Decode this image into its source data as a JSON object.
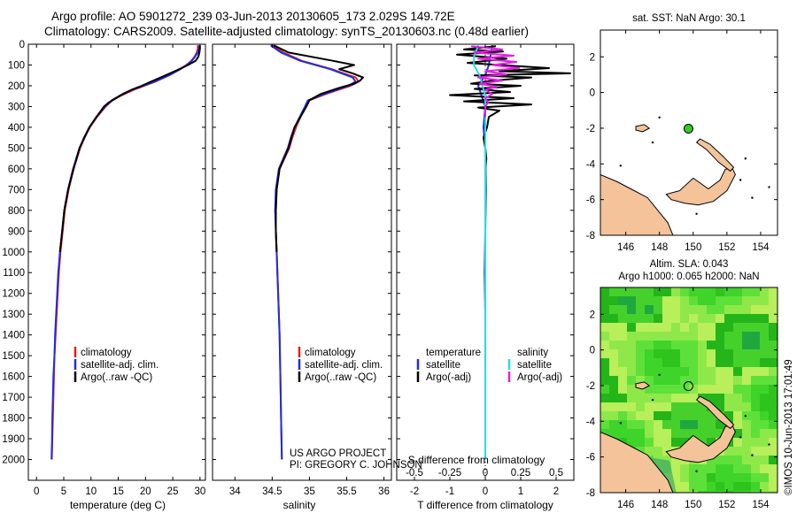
{
  "header": {
    "line1": "Argo profile: AO 5901272_239 03-Jun-2013 20130605_173 2.029S 149.72E",
    "line2": "Climatology: CARS2009. Satellite-adjusted climatology: synTS_20130603.nc (0.48d earlier)"
  },
  "colors": {
    "climatology": "#e0201b",
    "satellite": "#1f2de0",
    "argo": "#000000",
    "sal_sat": "#29d9e8",
    "sal_argo": "#e020e0",
    "land": "#f4c39a",
    "sla_green": "#33cc22",
    "float_marker": "#33cc22"
  },
  "chart_data": [
    {
      "type": "line",
      "id": "temperature",
      "xlabel": "temperature (deg C)",
      "ylabel": "",
      "xlim": [
        -1.5,
        31
      ],
      "ylim": [
        2100,
        0
      ],
      "xticks": [
        0,
        5,
        10,
        15,
        20,
        25,
        30
      ],
      "yticks": [
        0,
        100,
        200,
        300,
        400,
        500,
        600,
        700,
        800,
        900,
        1000,
        1100,
        1200,
        1300,
        1400,
        1500,
        1600,
        1700,
        1800,
        1900,
        2000
      ],
      "legend": [
        "climatology",
        "satellite-adj. clim.",
        "Argo(..raw -QC)"
      ],
      "series": [
        {
          "name": "climatology",
          "depth": [
            5,
            20,
            40,
            60,
            80,
            100,
            120,
            150,
            180,
            200,
            220,
            250,
            270,
            300,
            350,
            400,
            450,
            500,
            600,
            700,
            800,
            900,
            1000,
            1100,
            1200,
            1300,
            1400,
            1500,
            1600,
            1700,
            1800,
            1900,
            2000
          ],
          "values": [
            29.6,
            29.6,
            29.4,
            29.0,
            28.4,
            27.5,
            26.3,
            24.3,
            21.8,
            19.8,
            17.8,
            15.3,
            13.9,
            12.7,
            11.1,
            9.8,
            8.8,
            8.0,
            6.8,
            5.9,
            5.2,
            4.8,
            4.4,
            4.1,
            3.9,
            3.7,
            3.5,
            3.3,
            3.2,
            3.1,
            3.0,
            2.9,
            2.8
          ]
        },
        {
          "name": "satellite-adj. clim.",
          "depth": [
            5,
            20,
            40,
            60,
            80,
            100,
            120,
            150,
            180,
            200,
            220,
            250,
            270,
            300,
            350,
            400,
            450,
            500,
            600,
            700,
            800,
            900,
            1000,
            1100,
            1200,
            1300,
            1400,
            1500,
            1600,
            1700,
            1800,
            1900,
            2000
          ],
          "values": [
            29.8,
            29.8,
            29.6,
            29.1,
            28.5,
            27.6,
            26.4,
            24.3,
            21.6,
            19.6,
            17.5,
            15.1,
            13.8,
            12.6,
            11.0,
            9.7,
            8.7,
            7.9,
            6.7,
            5.8,
            5.1,
            4.7,
            4.3,
            4.0,
            3.8,
            3.6,
            3.4,
            3.3,
            3.1,
            3.0,
            2.9,
            2.85,
            2.75
          ]
        },
        {
          "name": "Argo(..raw -QC)",
          "depth": [
            5,
            20,
            40,
            60,
            80,
            100,
            120,
            140,
            160,
            180,
            200,
            220,
            240,
            260,
            280,
            300,
            350,
            400,
            500,
            600,
            700,
            800,
            900,
            1000
          ],
          "values": [
            30.0,
            30.0,
            29.9,
            29.7,
            29.2,
            27.8,
            26.2,
            24.5,
            22.8,
            21.0,
            19.3,
            17.4,
            15.8,
            14.6,
            13.3,
            12.4,
            11.0,
            9.7,
            7.9,
            6.8,
            5.8,
            5.1,
            4.7,
            4.3
          ]
        }
      ]
    },
    {
      "type": "line",
      "id": "salinity",
      "xlabel": "salinity",
      "xlim": [
        33.7,
        36.1
      ],
      "ylim": [
        2100,
        0
      ],
      "xticks": [
        34,
        34.5,
        35,
        35.5,
        36
      ],
      "legend": [
        "climatology",
        "satellite-adj. clim.",
        "Argo(..raw -QC)"
      ],
      "series": [
        {
          "name": "climatology",
          "depth": [
            5,
            40,
            80,
            120,
            160,
            180,
            200,
            240,
            270,
            300,
            350,
            400,
            450,
            500,
            600,
            700,
            800,
            900,
            1000,
            1200,
            1400,
            1600,
            1800,
            2000
          ],
          "values": [
            34.5,
            34.65,
            34.9,
            35.3,
            35.62,
            35.66,
            35.55,
            35.22,
            35.0,
            34.95,
            34.88,
            34.82,
            34.77,
            34.73,
            34.6,
            34.56,
            34.55,
            34.55,
            34.56,
            34.58,
            34.6,
            34.61,
            34.62,
            34.63
          ]
        },
        {
          "name": "satellite-adj. clim.",
          "depth": [
            5,
            40,
            80,
            120,
            160,
            180,
            200,
            240,
            270,
            300,
            350,
            400,
            450,
            500,
            600,
            700,
            800,
            900,
            1000,
            1200,
            1400,
            1600,
            1800,
            2000
          ],
          "values": [
            34.48,
            34.62,
            34.88,
            35.28,
            35.58,
            35.62,
            35.52,
            35.2,
            34.98,
            34.94,
            34.87,
            34.8,
            34.75,
            34.71,
            34.59,
            34.55,
            34.54,
            34.55,
            34.56,
            34.58,
            34.6,
            34.61,
            34.62,
            34.63
          ]
        },
        {
          "name": "Argo(..raw -QC)",
          "depth": [
            5,
            40,
            80,
            100,
            120,
            140,
            160,
            175,
            190,
            210,
            240,
            270,
            300,
            350,
            400,
            500,
            600,
            700,
            800,
            900,
            1000
          ],
          "values": [
            34.52,
            34.72,
            35.32,
            35.6,
            35.4,
            35.58,
            35.72,
            35.68,
            35.6,
            35.4,
            35.15,
            35.0,
            34.96,
            34.88,
            34.8,
            34.72,
            34.6,
            34.56,
            34.55,
            34.55,
            34.56
          ]
        }
      ]
    },
    {
      "type": "line",
      "id": "differences",
      "xlabel": "T difference from climatology",
      "xlabel_top": "S difference from climatology",
      "xlim": [
        -2.5,
        2.5
      ],
      "ylim": [
        2100,
        0
      ],
      "xticks": [
        -2,
        -1,
        0,
        1,
        2
      ],
      "xtick_labels_top": [
        "-0.5",
        "-0.25",
        "0",
        "0.25",
        "0.5"
      ],
      "legend_headers": [
        "temperature",
        "salinity"
      ],
      "legend": [
        "satellite",
        "Argo(-adj)",
        "satellite",
        "Argo(-adj)"
      ],
      "series": [
        {
          "name": "temperature satellite",
          "depth": [
            5,
            100,
            150,
            200,
            300,
            400,
            500,
            700,
            900,
            1100,
            1300,
            1500,
            1700,
            1900,
            2000
          ],
          "values": [
            0.2,
            0.1,
            0.0,
            -0.2,
            0.0,
            -0.05,
            0.0,
            0.02,
            0.0,
            -0.02,
            0.0,
            0.0,
            0.0,
            0.0,
            0.0
          ]
        },
        {
          "name": "temperature Argo(-adj)",
          "depth": [
            10,
            25,
            35,
            50,
            70,
            90,
            105,
            115,
            130,
            140,
            150,
            160,
            175,
            190,
            200,
            215,
            230,
            245,
            260,
            275,
            290,
            305,
            320,
            350,
            400,
            450,
            500,
            550,
            600
          ],
          "values": [
            0.3,
            -0.6,
            0.5,
            -0.8,
            0.6,
            -0.5,
            0.9,
            1.8,
            0.4,
            2.4,
            -0.3,
            1.3,
            0.2,
            -0.4,
            1.0,
            -0.3,
            0.7,
            -1.0,
            0.8,
            -0.6,
            1.3,
            -0.2,
            0.4,
            0.1,
            0.05,
            -0.05,
            0.0,
            0.03,
            0.0
          ]
        },
        {
          "name": "salinity satellite",
          "depth": [
            5,
            60,
            100,
            150,
            200,
            250,
            300,
            400,
            600,
            800,
            1000,
            1200,
            1400,
            1600,
            1800,
            2000
          ],
          "values": [
            -0.05,
            -0.08,
            -0.08,
            -0.04,
            -0.02,
            0.0,
            0.0,
            0.0,
            0.0,
            0.0,
            0.0,
            0.0,
            0.0,
            0.0,
            0.0,
            0.0
          ]
        },
        {
          "name": "salinity Argo(-adj)",
          "depth": [
            10,
            25,
            40,
            55,
            70,
            85,
            100,
            115,
            130,
            145,
            160,
            175,
            190,
            205,
            220,
            240,
            260,
            280,
            300,
            350
          ],
          "values": [
            -0.1,
            0.12,
            -0.08,
            0.2,
            -0.05,
            0.22,
            0.05,
            0.24,
            0.0,
            0.15,
            -0.05,
            0.12,
            -0.04,
            0.08,
            0.0,
            0.05,
            0.0,
            0.02,
            0.0,
            0.0
          ]
        }
      ],
      "annotation": [
        "US ARGO PROJECT",
        "PI: GREGORY C. JOHNSON"
      ]
    },
    {
      "type": "map",
      "id": "sst_map",
      "title": "sat. SST: NaN Argo: 30.1",
      "xlim": [
        144.5,
        155
      ],
      "ylim": [
        -8,
        3.5
      ],
      "xticks": [
        146,
        148,
        150,
        152,
        154
      ],
      "yticks": [
        2,
        0,
        -2,
        -4,
        -6,
        -8
      ],
      "float_position": [
        149.72,
        -2.029
      ]
    },
    {
      "type": "heatmap",
      "id": "sla_map",
      "title_line1": "Altim. SLA: 0.043",
      "title_line2": "Argo h1000: 0.065 h2000: NaN",
      "xlim": [
        144.5,
        155
      ],
      "ylim": [
        -8,
        3.5
      ],
      "xticks": [
        146,
        148,
        150,
        152,
        154
      ],
      "yticks": [
        2,
        0,
        -2,
        -4,
        -6,
        -8
      ],
      "float_position": [
        149.72,
        -2.029
      ],
      "side_text": "©IMOS 10-Jun-2013 17:01:49"
    }
  ]
}
